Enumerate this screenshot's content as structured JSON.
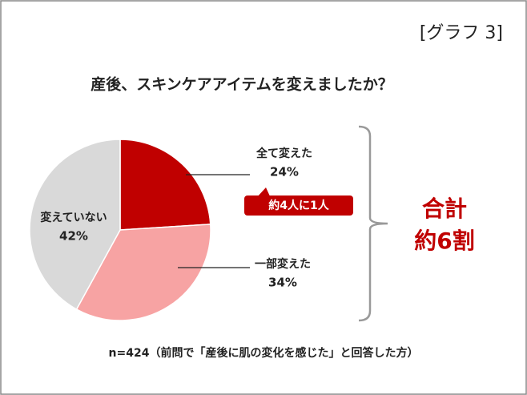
{
  "chart_data": {
    "type": "pie",
    "figure_label": "[グラフ 3]",
    "title": "産後、スキンケアアイテムを変えましたか？",
    "categories": [
      "全て変えた",
      "一部変えた",
      "変えていない"
    ],
    "values": [
      24,
      34,
      42
    ],
    "value_labels": [
      "24%",
      "34%",
      "42%"
    ],
    "colors": [
      "#c00000",
      "#f7a3a3",
      "#d9d9d9"
    ],
    "callout": "約4人に1人",
    "total_label": [
      "合計",
      "約6割"
    ],
    "note": "n=424（前問で「産後に肌の変化を感じた」と回答した方）"
  }
}
